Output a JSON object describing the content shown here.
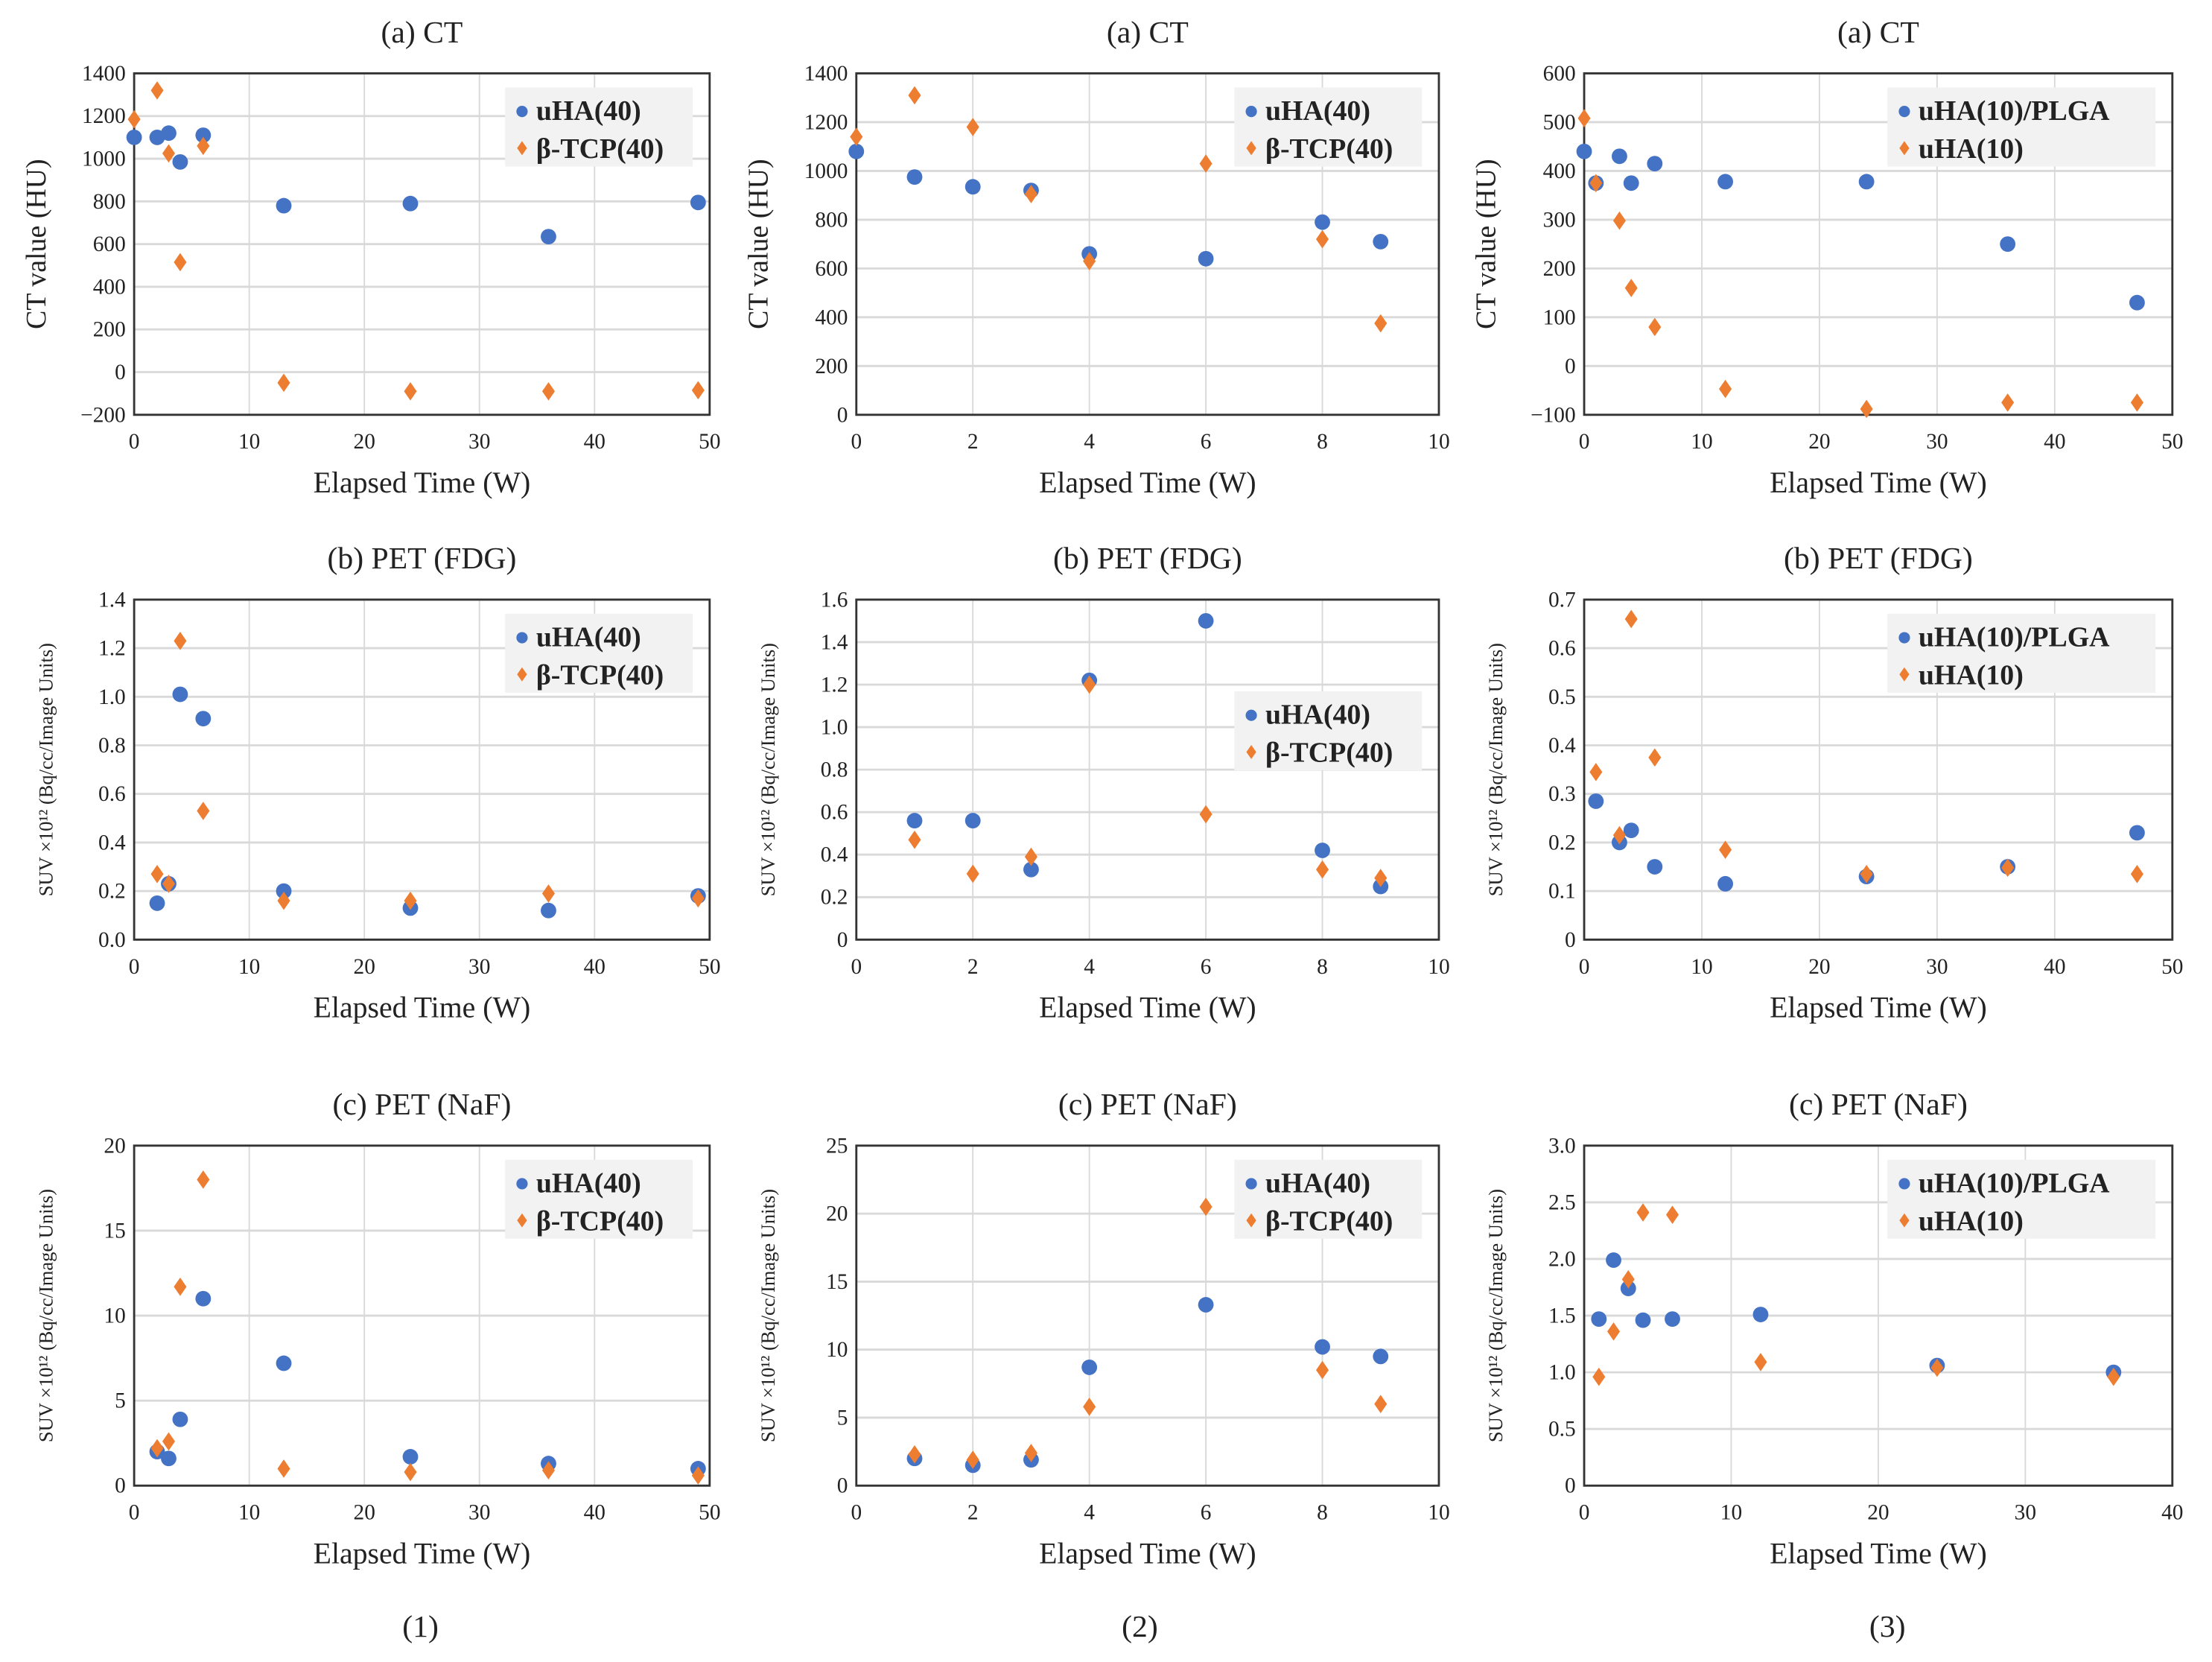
{
  "colors": {
    "series1": "#4472C4",
    "series2": "#ED7D31",
    "grid": "#d9d9d9",
    "legend_bg": "#f2f2f2"
  },
  "column_labels": [
    "(1)",
    "(2)",
    "(3)"
  ],
  "chart_data": [
    {
      "type": "scatter",
      "title": "(a) CT",
      "xlabel": "Elapsed Time (W)",
      "ylabel": "CT value (HU)",
      "xlim": [
        0,
        50
      ],
      "xstep": 10,
      "ylim": [
        -200,
        1400
      ],
      "ystep": 200,
      "ydec": 0,
      "legend": "top-right",
      "grid": true,
      "series": [
        {
          "name": "uHA(40)",
          "x": [
            0,
            2,
            3,
            4,
            6,
            13,
            24,
            36,
            49
          ],
          "y": [
            1100,
            1100,
            1120,
            985,
            1110,
            780,
            790,
            635,
            795
          ]
        },
        {
          "name": "β-TCP(40)",
          "x": [
            0,
            2,
            3,
            4,
            6,
            13,
            24,
            36,
            49
          ],
          "y": [
            1185,
            1320,
            1025,
            515,
            1060,
            -50,
            -90,
            -90,
            -85
          ]
        }
      ]
    },
    {
      "type": "scatter",
      "title": "(a) CT",
      "xlabel": "Elapsed Time (W)",
      "ylabel": "CT value (HU)",
      "xlim": [
        0,
        10
      ],
      "xstep": 2,
      "ylim": [
        0,
        1400
      ],
      "ystep": 200,
      "ydec": 0,
      "legend": "top-right",
      "grid": true,
      "series": [
        {
          "name": "uHA(40)",
          "x": [
            0,
            1,
            2,
            3,
            4,
            6,
            8,
            9
          ],
          "y": [
            1080,
            975,
            935,
            920,
            660,
            640,
            790,
            710
          ]
        },
        {
          "name": "β-TCP(40)",
          "x": [
            0,
            1,
            2,
            3,
            4,
            6,
            8,
            9
          ],
          "y": [
            1140,
            1310,
            1180,
            905,
            630,
            1030,
            720,
            375
          ]
        }
      ]
    },
    {
      "type": "scatter",
      "title": "(a) CT",
      "xlabel": "Elapsed Time (W)",
      "ylabel": "CT value (HU)",
      "xlim": [
        0,
        50
      ],
      "xstep": 10,
      "ylim": [
        -100,
        600
      ],
      "ystep": 100,
      "ydec": 0,
      "legend": "top-right",
      "grid": true,
      "series": [
        {
          "name": "uHA(10)/PLGA",
          "x": [
            0,
            1,
            3,
            4,
            6,
            12,
            24,
            36,
            47
          ],
          "y": [
            440,
            375,
            430,
            375,
            415,
            378,
            378,
            250,
            130
          ]
        },
        {
          "name": "uHA(10)",
          "x": [
            0,
            1,
            3,
            4,
            6,
            12,
            24,
            36,
            47
          ],
          "y": [
            508,
            375,
            298,
            160,
            80,
            -47,
            -88,
            -75,
            -75
          ]
        }
      ]
    },
    {
      "type": "scatter",
      "title": "(b) PET (FDG)",
      "xlabel": "Elapsed Time (W)",
      "ylabel": "SUV  ×10¹² (Bq/cc/Image Units)",
      "xlim": [
        0,
        50
      ],
      "xstep": 10,
      "ylim": [
        0,
        1.4
      ],
      "ystep": 0.2,
      "ydec": 1,
      "legend": "top-right",
      "grid": true,
      "series": [
        {
          "name": "uHA(40)",
          "x": [
            2,
            3,
            4,
            6,
            13,
            24,
            36,
            49
          ],
          "y": [
            0.15,
            0.23,
            1.01,
            0.91,
            0.2,
            0.13,
            0.12,
            0.18
          ]
        },
        {
          "name": "β-TCP(40)",
          "x": [
            2,
            3,
            4,
            6,
            13,
            24,
            36,
            49
          ],
          "y": [
            0.27,
            0.23,
            1.23,
            0.53,
            0.16,
            0.16,
            0.19,
            0.17
          ]
        }
      ]
    },
    {
      "type": "scatter",
      "title": "(b) PET (FDG)",
      "xlabel": "Elapsed Time (W)",
      "ylabel": "SUV  ×10¹² (Bq/cc/Image Units)",
      "xlim": [
        0,
        10
      ],
      "xstep": 2,
      "ylim": [
        0,
        1.6
      ],
      "ystep": 0.2,
      "ydec": 1,
      "zero_plain": true,
      "legend": "center-right",
      "grid": true,
      "series": [
        {
          "name": "uHA(40)",
          "x": [
            1,
            2,
            3,
            4,
            6,
            8,
            9
          ],
          "y": [
            0.56,
            0.56,
            0.33,
            1.22,
            1.5,
            0.42,
            0.25
          ]
        },
        {
          "name": "β-TCP(40)",
          "x": [
            1,
            2,
            3,
            4,
            6,
            8,
            9
          ],
          "y": [
            0.47,
            0.31,
            0.39,
            1.2,
            0.59,
            0.33,
            0.29
          ]
        }
      ]
    },
    {
      "type": "scatter",
      "title": "(b) PET (FDG)",
      "xlabel": "Elapsed Time (W)",
      "ylabel": "SUV  ×10¹² (Bq/cc/Image Units)",
      "xlim": [
        0,
        50
      ],
      "xstep": 10,
      "ylim": [
        0,
        0.7
      ],
      "ystep": 0.1,
      "ydec": 1,
      "zero_plain": true,
      "legend": "top-right",
      "grid": true,
      "series": [
        {
          "name": "uHA(10)/PLGA",
          "x": [
            1,
            3,
            4,
            6,
            12,
            24,
            36,
            47
          ],
          "y": [
            0.285,
            0.2,
            0.225,
            0.15,
            0.115,
            0.13,
            0.15,
            0.22
          ]
        },
        {
          "name": "uHA(10)",
          "x": [
            1,
            3,
            4,
            6,
            12,
            24,
            36,
            47
          ],
          "y": [
            0.345,
            0.215,
            0.66,
            0.375,
            0.185,
            0.135,
            0.148,
            0.135
          ]
        }
      ]
    },
    {
      "type": "scatter",
      "title": "(c) PET (NaF)",
      "xlabel": "Elapsed Time (W)",
      "ylabel": "SUV  ×10¹² (Bq/cc/Image Units)",
      "xlim": [
        0,
        50
      ],
      "xstep": 10,
      "ylim": [
        0,
        20
      ],
      "ystep": 5,
      "ydec": 0,
      "legend": "top-right",
      "grid": true,
      "series": [
        {
          "name": "uHA(40)",
          "x": [
            2,
            3,
            4,
            6,
            13,
            24,
            36,
            49
          ],
          "y": [
            2.0,
            1.6,
            3.9,
            11.0,
            7.2,
            1.7,
            1.3,
            1.0
          ]
        },
        {
          "name": "β-TCP(40)",
          "x": [
            2,
            3,
            4,
            6,
            13,
            24,
            36,
            49
          ],
          "y": [
            2.2,
            2.6,
            11.7,
            18.0,
            1.0,
            0.8,
            0.9,
            0.6
          ]
        }
      ]
    },
    {
      "type": "scatter",
      "title": "(c) PET (NaF)",
      "xlabel": "Elapsed Time (W)",
      "ylabel": "SUV  ×10¹² (Bq/cc/Image Units)",
      "xlim": [
        0,
        10
      ],
      "xstep": 2,
      "ylim": [
        0,
        25
      ],
      "ystep": 5,
      "ydec": 0,
      "legend": "top-right",
      "grid": true,
      "series": [
        {
          "name": "uHA(40)",
          "x": [
            1,
            2,
            3,
            4,
            6,
            8,
            9
          ],
          "y": [
            2.0,
            1.5,
            1.9,
            8.7,
            13.3,
            10.2,
            9.5
          ]
        },
        {
          "name": "β-TCP(40)",
          "x": [
            1,
            2,
            3,
            4,
            6,
            8,
            9
          ],
          "y": [
            2.3,
            1.9,
            2.4,
            5.8,
            20.5,
            8.5,
            6.0
          ]
        }
      ]
    },
    {
      "type": "scatter",
      "title": "(c) PET (NaF)",
      "xlabel": "Elapsed Time (W)",
      "ylabel": "SUV  ×10¹² (Bq/cc/Image Units)",
      "xlim": [
        0,
        40
      ],
      "xstep": 10,
      "ylim": [
        0,
        3.0
      ],
      "ystep": 0.5,
      "ydec": 1,
      "zero_plain": true,
      "legend": "top-right",
      "grid": true,
      "series": [
        {
          "name": "uHA(10)/PLGA",
          "x": [
            1,
            2,
            3,
            4,
            6,
            12,
            24,
            36
          ],
          "y": [
            1.47,
            1.99,
            1.74,
            1.46,
            1.47,
            1.51,
            1.06,
            1.0
          ]
        },
        {
          "name": "uHA(10)",
          "x": [
            1,
            2,
            3,
            4,
            6,
            12,
            24,
            36
          ],
          "y": [
            0.96,
            1.36,
            1.82,
            2.41,
            2.39,
            1.09,
            1.04,
            0.96
          ]
        }
      ]
    }
  ]
}
